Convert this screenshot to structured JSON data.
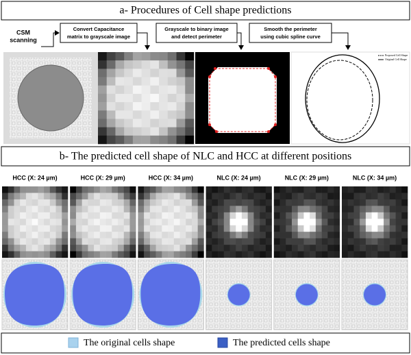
{
  "section_a": {
    "title": "a- Procedures of Cell shape predictions",
    "start_label": [
      "CSM",
      "scanning"
    ],
    "steps": [
      [
        "Convert Capacitance",
        "matrix to grayscale image"
      ],
      [
        "Grayscale to binary image",
        "and detect perimeter"
      ],
      [
        "Smooth the perimeter",
        "using cubic spline curve"
      ]
    ],
    "plot_legend": [
      "Proposed Cell Shape",
      "Original Cell Shape"
    ]
  },
  "section_b": {
    "title": "b- The predicted cell shape of NLC and HCC at different positions",
    "panels": [
      "HCC (X: 24 µm)",
      "HCC (X: 29 µm)",
      "HCC (X: 34 µm)",
      "NLC (X: 24 µm)",
      "NLC (X: 29 µm)",
      "NLC (X: 34 µm)"
    ]
  },
  "legend": {
    "items": [
      "The original cells shape",
      "The predicted cells shape"
    ]
  }
}
